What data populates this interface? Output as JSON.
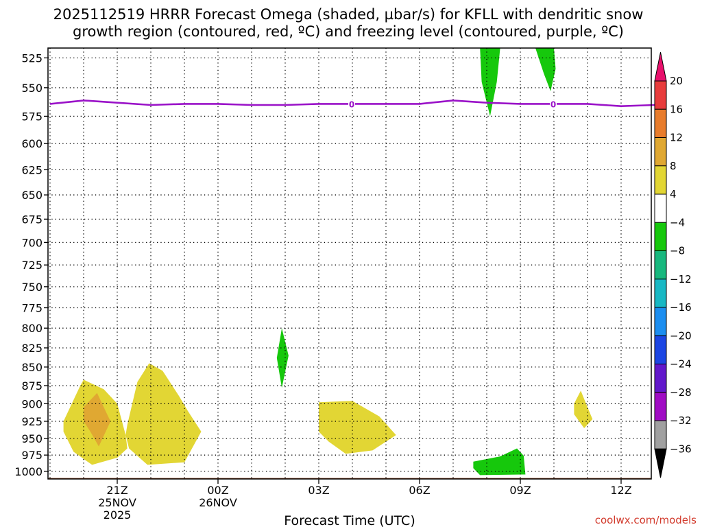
{
  "title_line1": "2025112519 HRRR Forecast Omega (shaded, µbar/s) for KFLL with dendritic snow",
  "title_line2": "growth region (contoured, red, ºC) and freezing level (contoured, purple, ºC)",
  "credit": "coolwx.com/models",
  "chart_data": {
    "type": "heatmap",
    "title": "2025112519 HRRR Forecast Omega (shaded, µbar/s) for KFLL with dendritic snow growth region (contoured, red, ºC) and freezing level (contoured, purple, ºC)",
    "xlabel": "Forecast Time (UTC)",
    "ylabel": "",
    "x_unit": "hours after 2025-11-25 19Z",
    "xlim": [
      0,
      18
    ],
    "ylim": [
      1012,
      517
    ],
    "y_scale": "pressure (log)",
    "grid": true,
    "x_ticks": [
      {
        "x": 2,
        "lines": [
          "21Z",
          "25NOV",
          "2025"
        ]
      },
      {
        "x": 5,
        "lines": [
          "00Z",
          "26NOV"
        ]
      },
      {
        "x": 8,
        "lines": [
          "03Z"
        ]
      },
      {
        "x": 11,
        "lines": [
          "06Z"
        ]
      },
      {
        "x": 14,
        "lines": [
          "09Z"
        ]
      },
      {
        "x": 17,
        "lines": [
          "12Z"
        ]
      }
    ],
    "y_ticks": [
      525,
      550,
      575,
      600,
      625,
      650,
      675,
      700,
      725,
      750,
      775,
      800,
      825,
      850,
      875,
      900,
      925,
      950,
      975,
      1000
    ],
    "colorbar": {
      "labels": [
        "20",
        "16",
        "12",
        "8",
        "4",
        "−4",
        "−8",
        "−12",
        "−16",
        "−20",
        "−24",
        "−28",
        "−32",
        "−36"
      ],
      "colors": [
        "#e8106c",
        "#e83c3c",
        "#e87c2c",
        "#e0a832",
        "#e2d634",
        "#ffffff",
        "#16c80c",
        "#18b87e",
        "#18b8c4",
        "#1c8ef0",
        "#1c46e4",
        "#6218cc",
        "#a00cc4",
        "#a0a0a0",
        "#000000"
      ]
    },
    "freezing_level": {
      "color": "#9a12c8",
      "label": "0",
      "points": [
        [
          0,
          564
        ],
        [
          1,
          561
        ],
        [
          2,
          563
        ],
        [
          3,
          565
        ],
        [
          4,
          564
        ],
        [
          5,
          564
        ],
        [
          6,
          565
        ],
        [
          7,
          565
        ],
        [
          8,
          564
        ],
        [
          9,
          564
        ],
        [
          10,
          564
        ],
        [
          11,
          564
        ],
        [
          12,
          561
        ],
        [
          13,
          563
        ],
        [
          14,
          564
        ],
        [
          15,
          564
        ],
        [
          16,
          564
        ],
        [
          17,
          566
        ],
        [
          18,
          565
        ]
      ],
      "label_x": [
        8.98,
        14.98
      ]
    },
    "surface_fill": {
      "color": "#a0522d",
      "p_top": 1010.5,
      "p_bottom": 1012
    },
    "shaded_regions": [
      {
        "level": "4 to 8",
        "color": "#e2d634",
        "points": [
          [
            0.4,
            925
          ],
          [
            0.9,
            875
          ],
          [
            1.0,
            867
          ],
          [
            1.6,
            880
          ],
          [
            2.0,
            900
          ],
          [
            2.25,
            945
          ],
          [
            2.3,
            965
          ],
          [
            2.0,
            979
          ],
          [
            1.25,
            990
          ],
          [
            0.7,
            970
          ],
          [
            0.4,
            940
          ]
        ]
      },
      {
        "level": "8 to 12",
        "color": "#e0a832",
        "points": [
          [
            1.0,
            905
          ],
          [
            1.4,
            885
          ],
          [
            1.6,
            905
          ],
          [
            1.8,
            925
          ],
          [
            1.45,
            962
          ],
          [
            1.2,
            940
          ],
          [
            1.0,
            925
          ]
        ]
      },
      {
        "level": "4 to 8",
        "color": "#e2d634",
        "points": [
          [
            2.3,
            930
          ],
          [
            2.6,
            870
          ],
          [
            2.95,
            845
          ],
          [
            3.35,
            855
          ],
          [
            3.85,
            890
          ],
          [
            4.1,
            910
          ],
          [
            4.5,
            940
          ],
          [
            4.0,
            986
          ],
          [
            2.9,
            990
          ],
          [
            2.35,
            965
          ],
          [
            2.25,
            945
          ]
        ]
      },
      {
        "level": "-8 to -4",
        "color": "#16c80c",
        "points": [
          [
            6.9,
            800
          ],
          [
            7.1,
            835
          ],
          [
            6.9,
            878
          ],
          [
            6.75,
            838
          ]
        ]
      },
      {
        "level": "4 to 8",
        "color": "#e2d634",
        "points": [
          [
            8.0,
            898
          ],
          [
            9.0,
            896
          ],
          [
            9.8,
            918
          ],
          [
            10.3,
            945
          ],
          [
            9.6,
            968
          ],
          [
            8.8,
            973
          ],
          [
            8.3,
            955
          ],
          [
            8.0,
            940
          ]
        ]
      },
      {
        "level": "-8 to -4",
        "color": "#16c80c",
        "points": [
          [
            12.6,
            985
          ],
          [
            13.4,
            977
          ],
          [
            13.9,
            965
          ],
          [
            14.1,
            976
          ],
          [
            14.15,
            1005
          ],
          [
            12.8,
            1006
          ],
          [
            12.6,
            995
          ]
        ]
      },
      {
        "level": "-8 to -4",
        "color": "#16c80c",
        "points": [
          [
            12.8,
            517
          ],
          [
            13.4,
            517
          ],
          [
            13.3,
            545
          ],
          [
            13.1,
            575
          ],
          [
            12.85,
            545
          ]
        ]
      },
      {
        "level": "-8 to -4",
        "color": "#16c80c",
        "points": [
          [
            14.45,
            517
          ],
          [
            15.0,
            517
          ],
          [
            15.05,
            534
          ],
          [
            14.9,
            553
          ],
          [
            14.7,
            538
          ]
        ]
      },
      {
        "level": "4 to 8",
        "color": "#e2d634",
        "points": [
          [
            15.6,
            900
          ],
          [
            15.8,
            882
          ],
          [
            16.0,
            905
          ],
          [
            16.15,
            922
          ],
          [
            15.9,
            935
          ],
          [
            15.6,
            915
          ]
        ]
      }
    ]
  }
}
